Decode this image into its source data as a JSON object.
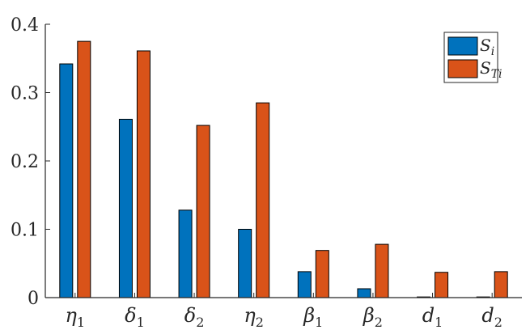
{
  "chart_data": {
    "type": "bar",
    "categories": [
      {
        "base": "η",
        "sub": "1"
      },
      {
        "base": "δ",
        "sub": "1"
      },
      {
        "base": "δ",
        "sub": "2"
      },
      {
        "base": "η",
        "sub": "2"
      },
      {
        "base": "β",
        "sub": "1"
      },
      {
        "base": "β",
        "sub": "2"
      },
      {
        "base": "d",
        "sub": "1"
      },
      {
        "base": "d",
        "sub": "2"
      }
    ],
    "series": [
      {
        "name": {
          "base": "S",
          "sub": "i"
        },
        "color": "#0072BD",
        "values": [
          0.342,
          0.261,
          0.128,
          0.1,
          0.038,
          0.013,
          0.001,
          0.001
        ]
      },
      {
        "name": {
          "base": "S",
          "sub": "Ti"
        },
        "color": "#D95319",
        "values": [
          0.375,
          0.361,
          0.252,
          0.285,
          0.069,
          0.078,
          0.037,
          0.038
        ]
      }
    ],
    "ylim": [
      0,
      0.4
    ],
    "yticks": [
      "0",
      "0.1",
      "0.2",
      "0.3",
      "0.4"
    ],
    "title": "",
    "xlabel": "",
    "ylabel": "",
    "grid": false,
    "legend_position": "top-right"
  }
}
